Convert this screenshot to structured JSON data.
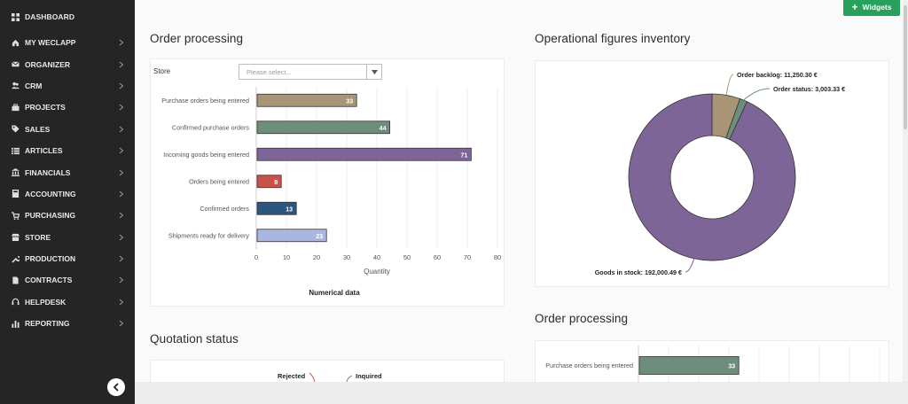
{
  "sidebar": {
    "dashboard_label": "DASHBOARD",
    "items": [
      {
        "label": "MY WECLAPP",
        "icon": "home-icon"
      },
      {
        "label": "ORGANIZER",
        "icon": "envelope-icon"
      },
      {
        "label": "CRM",
        "icon": "users-icon"
      },
      {
        "label": "PROJECTS",
        "icon": "briefcase-icon"
      },
      {
        "label": "SALES",
        "icon": "tag-icon"
      },
      {
        "label": "ARTICLES",
        "icon": "list-icon"
      },
      {
        "label": "FINANCIALS",
        "icon": "bank-icon"
      },
      {
        "label": "ACCOUNTING",
        "icon": "calculator-icon"
      },
      {
        "label": "PURCHASING",
        "icon": "cart-icon"
      },
      {
        "label": "STORE",
        "icon": "store-icon"
      },
      {
        "label": "PRODUCTION",
        "icon": "wrench-icon"
      },
      {
        "label": "CONTRACTS",
        "icon": "document-icon"
      },
      {
        "label": "HELPDESK",
        "icon": "headset-icon"
      },
      {
        "label": "REPORTING",
        "icon": "bar-chart-icon"
      }
    ]
  },
  "toolbar": {
    "widgets_label": "Widgets"
  },
  "order_processing": {
    "title": "Order processing",
    "store_label": "Store",
    "store_placeholder": "Please select...",
    "footer": "Numerical data"
  },
  "quotation_status": {
    "title": "Quotation status",
    "labels": [
      "Rejected",
      "Inquired"
    ]
  },
  "inventory": {
    "title": "Operational figures inventory"
  },
  "order_processing_2": {
    "title": "Order processing"
  },
  "colors": {
    "sidebar_bg": "#252525",
    "accent_green": "#26a05a"
  },
  "chart_data": [
    {
      "type": "bar",
      "orientation": "horizontal",
      "categories": [
        "Purchase orders being entered",
        "Confirmed purchase orders",
        "Incoming goods being entered",
        "Orders being entered",
        "Confirmed orders",
        "Shipments ready for delivery"
      ],
      "values": [
        33,
        44,
        71,
        8,
        13,
        23
      ],
      "colors": [
        "#a99575",
        "#6d8e7c",
        "#7e6597",
        "#c7524a",
        "#2b567f",
        "#a9b6e0"
      ],
      "xlabel": "Quantity",
      "xticks": [
        0,
        10,
        20,
        30,
        40,
        50,
        60,
        70,
        80
      ],
      "xlim": [
        0,
        80
      ],
      "grid": true
    },
    {
      "type": "pie",
      "donut": true,
      "slices": [
        {
          "label": "Order backlog",
          "value": 11250.3,
          "display": "Order backlog: 11,250.30 €",
          "color": "#a99575"
        },
        {
          "label": "Order status",
          "value": 3003.33,
          "display": "Order status: 3,003.33 €",
          "color": "#6d8e7c"
        },
        {
          "label": "Goods in stock",
          "value": 192000.49,
          "display": "Goods in stock: 192,000.49 €",
          "color": "#7e6597"
        }
      ]
    },
    {
      "type": "bar",
      "orientation": "horizontal",
      "categories": [
        "Purchase orders being entered"
      ],
      "values": [
        33
      ],
      "colors": [
        "#6d8e7c"
      ],
      "grid": true
    }
  ]
}
